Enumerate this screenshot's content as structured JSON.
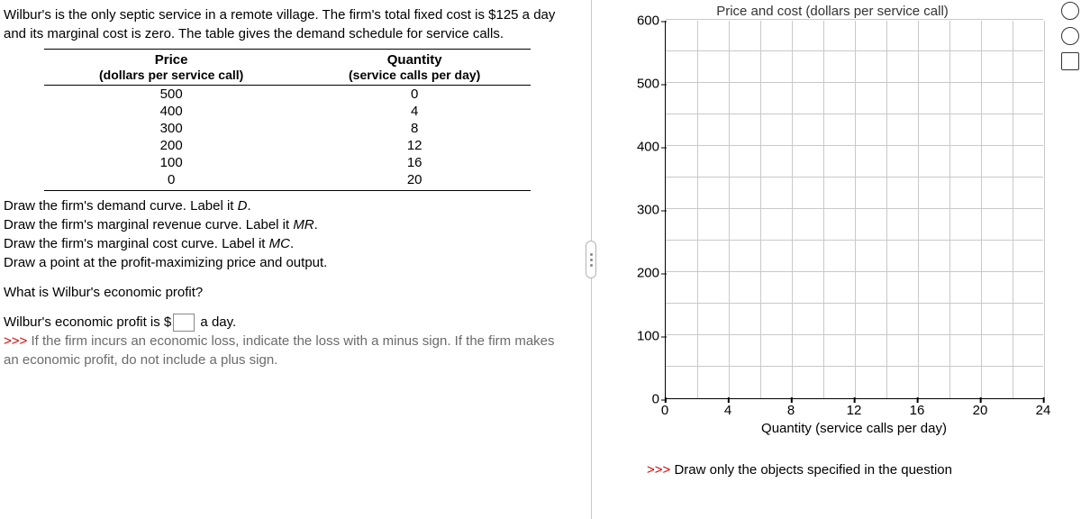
{
  "problem": {
    "intro": "Wilbur's is the only septic service in a remote village. The firm's total fixed cost is $125 a day and its marginal cost is zero. The table gives the demand schedule for service calls.",
    "table": {
      "col1_head": "Price",
      "col1_sub": "(dollars per service call)",
      "col2_head": "Quantity",
      "col2_sub": "(service calls per day)",
      "rows": [
        [
          "500",
          "0"
        ],
        [
          "400",
          "4"
        ],
        [
          "300",
          "8"
        ],
        [
          "200",
          "12"
        ],
        [
          "100",
          "16"
        ],
        [
          "0",
          "20"
        ]
      ]
    },
    "instr1": "Draw the firm's demand curve. Label it ",
    "instr1_lbl": "D",
    "instr2": "Draw the firm's marginal revenue curve. Label it ",
    "instr2_lbl": "MR",
    "instr3": "Draw the firm's marginal cost curve. Label it ",
    "instr3_lbl": "MC",
    "instr4": "Draw a point at the profit-maximizing price and output.",
    "question": "What is Wilbur's economic profit?",
    "answer_pre": "Wilbur's economic profit is $",
    "answer_post": " a day.",
    "hint_prefix": ">>> ",
    "hint": "If the firm incurs an economic loss, indicate the loss with a minus sign. If the firm makes an economic profit, do not include a plus sign."
  },
  "chart": {
    "title": "Price and cost (dollars per service call)",
    "xlabel": "Quantity (service calls per day)",
    "ylim": [
      0,
      600
    ],
    "xlim": [
      0,
      24
    ],
    "yticks": [
      0,
      100,
      200,
      300,
      400,
      500,
      600
    ],
    "xticks": [
      0,
      4,
      8,
      12,
      16,
      20,
      24
    ],
    "grid_minor_y_step": 50,
    "grid_minor_x_step": 2,
    "grid_color": "#c9c9c9",
    "axis_color": "#000000",
    "background_color": "#ffffff",
    "note_prefix": ">>> ",
    "note": "Draw only the objects specified in the question"
  }
}
